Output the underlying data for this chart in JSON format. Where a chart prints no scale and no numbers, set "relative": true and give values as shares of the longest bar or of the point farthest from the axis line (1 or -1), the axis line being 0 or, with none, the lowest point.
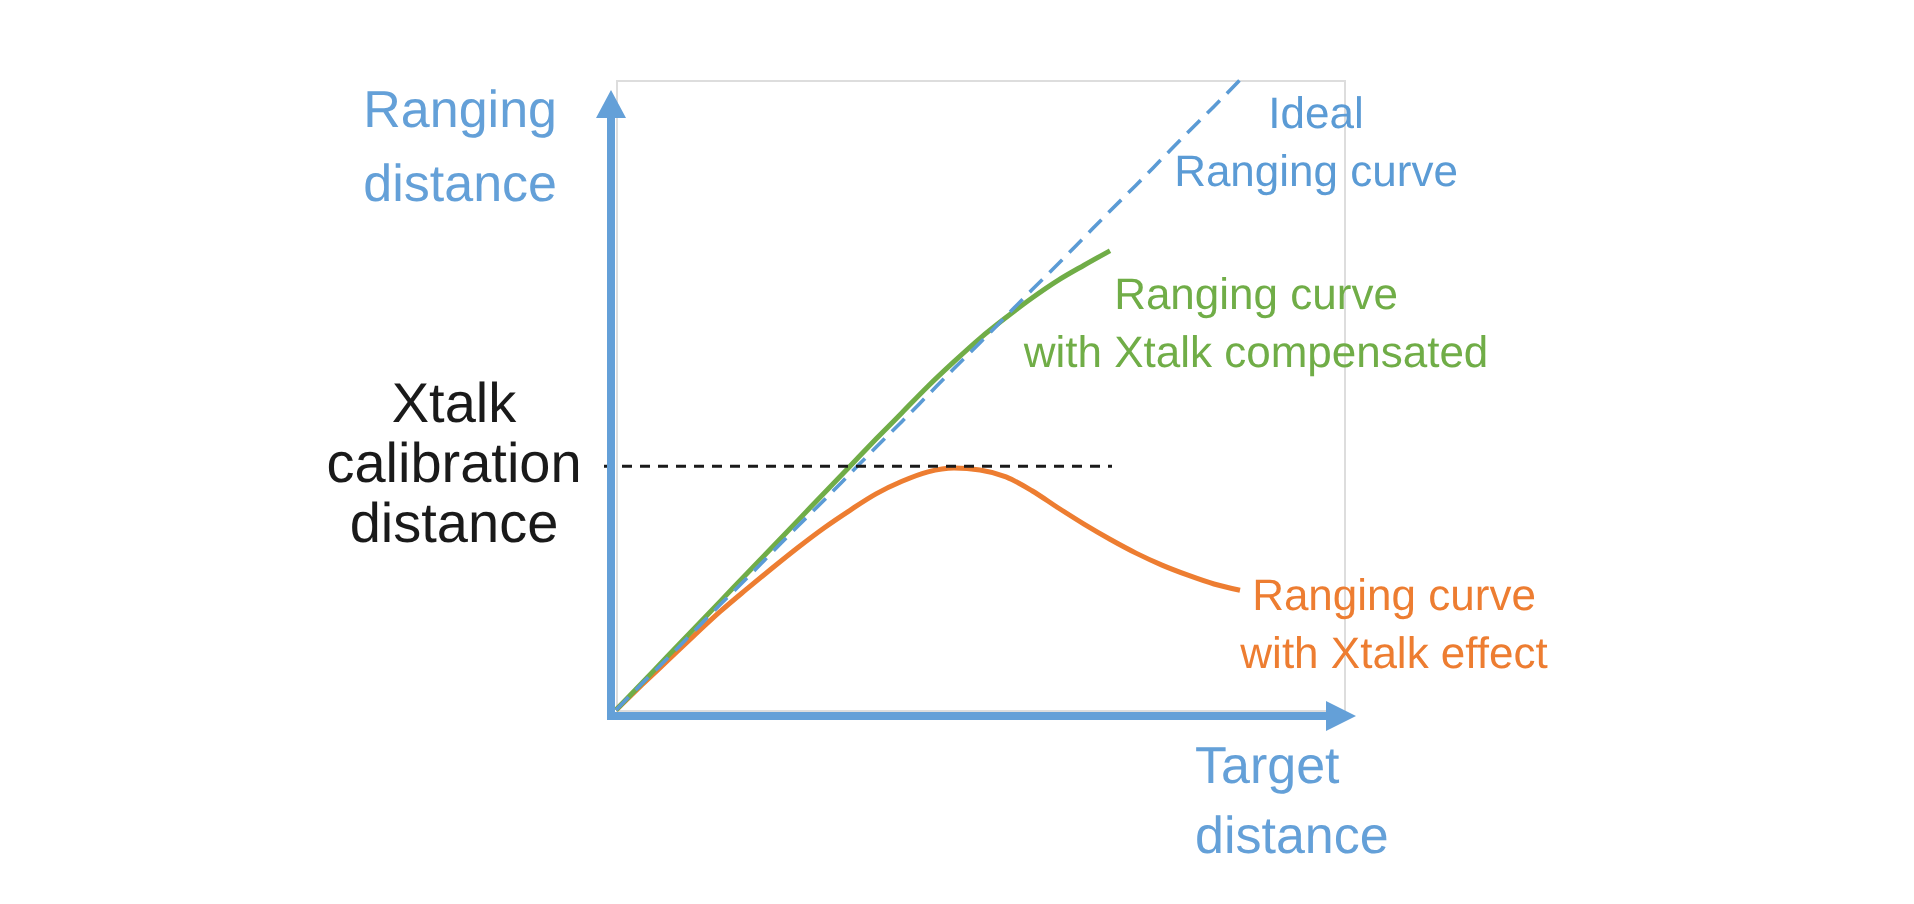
{
  "chart_data": {
    "type": "line",
    "relative": true,
    "xlabel": "Target\ndistance",
    "ylabel": "Ranging\ndistance",
    "categories": [
      null,
      null,
      null,
      null,
      null,
      null,
      null,
      null,
      null,
      null,
      null,
      null,
      null,
      null,
      null,
      null,
      null,
      null,
      null,
      null,
      null,
      null,
      null,
      null,
      null,
      null,
      null,
      null,
      null
    ],
    "series": [
      {
        "name": "Ideal\nRanging curve",
        "color": "#5b9bd5",
        "line_style": "dashed",
        "values": [
          0,
          0.042,
          0.083,
          0.125,
          0.167,
          0.208,
          0.25,
          0.292,
          0.333,
          0.375,
          0.417,
          0.458,
          0.5,
          0.542,
          0.583,
          0.625,
          0.667,
          0.708,
          0.75,
          0.792,
          0.833,
          0.875,
          0.917,
          0.958,
          1.0,
          null,
          null,
          null,
          null
        ]
      },
      {
        "name": "Ranging curve\nwith Xtalk compensated",
        "color": "#70ad47",
        "line_style": "solid",
        "values": [
          0,
          0.043,
          0.086,
          0.129,
          0.172,
          0.215,
          0.258,
          0.301,
          0.344,
          0.387,
          0.43,
          0.472,
          0.514,
          0.553,
          0.59,
          0.623,
          0.654,
          0.682,
          0.706,
          0.729,
          null,
          null,
          null,
          null,
          null,
          null,
          null,
          null,
          null
        ]
      },
      {
        "name": "Ranging curve\nwith Xtalk effect",
        "color": "#ed7d31",
        "line_style": "solid",
        "values": [
          0,
          0.04,
          0.079,
          0.118,
          0.156,
          0.191,
          0.225,
          0.258,
          0.289,
          0.317,
          0.343,
          0.363,
          0.378,
          0.384,
          0.381,
          0.37,
          0.348,
          0.321,
          0.295,
          0.271,
          0.249,
          0.23,
          0.214,
          0.2,
          0.19,
          null,
          null,
          null,
          null
        ]
      }
    ],
    "ref_lines": [
      {
        "axis": "y",
        "value": 0.387,
        "label": "Xtalk\ncalibration\ndistance",
        "color": "#1a1a1a",
        "line_style": "dashed"
      }
    ]
  }
}
